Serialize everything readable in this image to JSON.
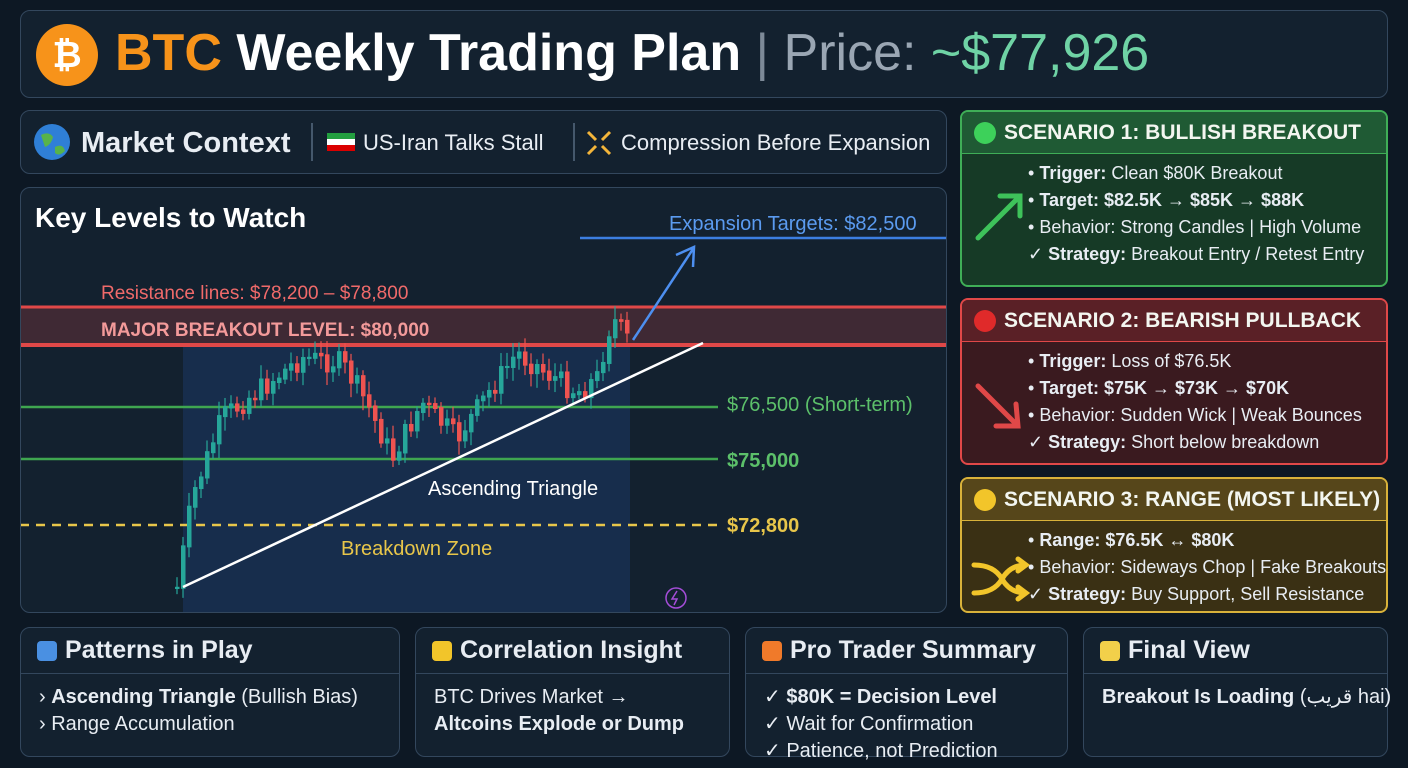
{
  "header": {
    "brand": "BTC",
    "title": "Weekly Trading Plan",
    "separator": "|",
    "price_label": "Price:",
    "price": "~$77,926"
  },
  "context": {
    "title": "Market Context",
    "items": [
      "US-Iran Talks Stall",
      "Compression Before Expansion"
    ]
  },
  "chart": {
    "title": "Key Levels to Watch",
    "target": "Expansion Targets: $82,500",
    "resistance": "Resistance lines: $78,200 – $78,800",
    "breakout": "MAJOR BREAKOUT LEVEL: $80,000",
    "levels": [
      "$76,500 (Short-term)",
      "$75,000",
      "$72,800"
    ],
    "pattern": "Ascending Triangle",
    "zone": "Breakdown Zone"
  },
  "scenarios": [
    {
      "title": "SCENARIO 1: BULLISH BREAKOUT",
      "lines": [
        {
          "label": "Trigger:",
          "text": "Clean $80K Breakout"
        },
        {
          "label": "Target: $82.5K → $85K → $88K"
        },
        {
          "text": "Behavior: Strong Candles | High Volume"
        },
        {
          "label": "Strategy:",
          "text": "Breakout Entry / Retest Entry"
        }
      ]
    },
    {
      "title": "SCENARIO 2: BEARISH PULLBACK",
      "lines": [
        {
          "label": "Trigger:",
          "text": "Loss of $76.5K"
        },
        {
          "label": "Target: $75K → $73K → $70K"
        },
        {
          "text": "Behavior: Sudden Wick | Weak Bounces"
        },
        {
          "label": "Strategy:",
          "text": "Short below breakdown"
        }
      ]
    },
    {
      "title": "SCENARIO 3: RANGE (MOST LIKELY)",
      "lines": [
        {
          "label": "Range: $76.5K ↔ $80K"
        },
        {
          "text": "Behavior: Sideways Chop | Fake Breakouts"
        },
        {
          "label": "Strategy:",
          "text": "Buy Support, Sell Resistance"
        }
      ]
    }
  ],
  "cards": [
    {
      "title": "Patterns in Play",
      "lines": [
        {
          "label": "Ascending Triangle",
          "text": "(Bullish Bias)"
        },
        {
          "text": "Range Accumulation"
        }
      ]
    },
    {
      "title": "Correlation Insight",
      "lines": [
        {
          "text": "BTC Drives Market →"
        },
        {
          "label": "Altcoins Explode or Dump"
        }
      ]
    },
    {
      "title": "Pro Trader Summary",
      "lines": [
        {
          "label": "$80K = Decision Level"
        },
        {
          "text": "Wait for Confirmation"
        },
        {
          "text": "Patience, not Prediction"
        }
      ]
    },
    {
      "title": "Final View",
      "lines": [
        {
          "label": "Breakout Is Loading",
          "text": "(قریب hai)"
        }
      ]
    }
  ]
}
